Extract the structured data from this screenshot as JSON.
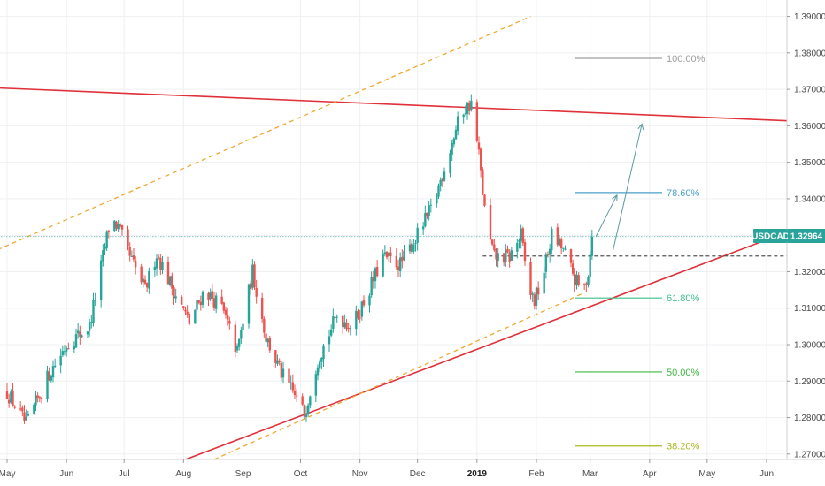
{
  "chart_data": {
    "type": "candlestick",
    "symbol": "USDCAD",
    "last_price": "1.32964",
    "y_ticks": [
      "1.27000",
      "1.28000",
      "1.29000",
      "1.30000",
      "1.31000",
      "1.32000",
      "1.33000",
      "1.34000",
      "1.35000",
      "1.36000",
      "1.37000",
      "1.38000",
      "1.39000"
    ],
    "y_tick_values": [
      1.27,
      1.28,
      1.29,
      1.3,
      1.31,
      1.32,
      1.33,
      1.34,
      1.35,
      1.36,
      1.37,
      1.38,
      1.39
    ],
    "ylim": [
      1.2685,
      1.3945
    ],
    "x_ticks": [
      {
        "label": "May",
        "day": 0
      },
      {
        "label": "Jun",
        "day": 31
      },
      {
        "label": "Jul",
        "day": 61
      },
      {
        "label": "Aug",
        "day": 92
      },
      {
        "label": "Sep",
        "day": 123
      },
      {
        "label": "Oct",
        "day": 153
      },
      {
        "label": "Nov",
        "day": 184
      },
      {
        "label": "Dec",
        "day": 214
      },
      {
        "label": "2019",
        "day": 245,
        "bold": true
      },
      {
        "label": "Feb",
        "day": 276
      },
      {
        "label": "Mar",
        "day": 304
      },
      {
        "label": "Apr",
        "day": 335
      },
      {
        "label": "May",
        "day": 365
      },
      {
        "label": "Jun",
        "day": 396
      }
    ],
    "price_path": [
      [
        0,
        1.287
      ],
      [
        10,
        1.278
      ],
      [
        22,
        1.292
      ],
      [
        31,
        1.3
      ],
      [
        43,
        1.305
      ],
      [
        54,
        1.335
      ],
      [
        58,
        1.332
      ],
      [
        64,
        1.324
      ],
      [
        72,
        1.315
      ],
      [
        78,
        1.325
      ],
      [
        85,
        1.317
      ],
      [
        95,
        1.306
      ],
      [
        103,
        1.315
      ],
      [
        112,
        1.31
      ],
      [
        120,
        1.298
      ],
      [
        128,
        1.32
      ],
      [
        135,
        1.302
      ],
      [
        143,
        1.292
      ],
      [
        150,
        1.286
      ],
      [
        155,
        1.281
      ],
      [
        162,
        1.296
      ],
      [
        172,
        1.308
      ],
      [
        180,
        1.305
      ],
      [
        188,
        1.314
      ],
      [
        196,
        1.324
      ],
      [
        205,
        1.322
      ],
      [
        214,
        1.33
      ],
      [
        222,
        1.338
      ],
      [
        230,
        1.352
      ],
      [
        237,
        1.364
      ],
      [
        242,
        1.366
      ],
      [
        246,
        1.352
      ],
      [
        250,
        1.332
      ],
      [
        254,
        1.324
      ],
      [
        262,
        1.324
      ],
      [
        268,
        1.33
      ],
      [
        272,
        1.315
      ],
      [
        275,
        1.312
      ],
      [
        279,
        1.318
      ],
      [
        284,
        1.33
      ],
      [
        290,
        1.326
      ],
      [
        296,
        1.318
      ],
      [
        300,
        1.314
      ],
      [
        303,
        1.32
      ],
      [
        305,
        1.3296
      ]
    ],
    "fib_levels": [
      {
        "label": "100.00%",
        "value": 1.3785,
        "color": "#9e9e9e"
      },
      {
        "label": "78.60%",
        "value": 1.3417,
        "color": "#4a9fc9"
      },
      {
        "label": "61.80%",
        "value": 1.3128,
        "color": "#3dbf8c"
      },
      {
        "label": "50.00%",
        "value": 1.2925,
        "color": "#3fb83f"
      },
      {
        "label": "38.20%",
        "value": 1.2722,
        "color": "#a8b820"
      }
    ],
    "lines": [
      {
        "kind": "resistance",
        "color": "#e0303a",
        "from": [
          -10,
          1.3705
        ],
        "to": [
          425,
          1.361
        ]
      },
      {
        "kind": "support",
        "color": "#e0303a",
        "from": [
          93,
          1.2685
        ],
        "to": [
          425,
          1.3345
        ]
      },
      {
        "kind": "channel",
        "color": "#f0a830",
        "dashed": true,
        "from": [
          -5,
          1.326
        ],
        "to": [
          273,
          1.39
        ]
      },
      {
        "kind": "channel",
        "color": "#f0a830",
        "dashed": true,
        "from": [
          108,
          1.2685
        ],
        "to": [
          300,
          1.314
        ]
      },
      {
        "kind": "current",
        "color": "#4aa8a8",
        "dotted": true,
        "from": [
          -10,
          1.32964
        ],
        "to": [
          425,
          1.32964
        ]
      },
      {
        "kind": "level",
        "color": "#555555",
        "dashed": true,
        "from": [
          248,
          1.3243
        ],
        "to": [
          423,
          1.3243
        ]
      }
    ],
    "arrows": [
      {
        "color": "#5a9a9a",
        "from": [
          307,
          1.3296
        ],
        "to": [
          318,
          1.341
        ]
      },
      {
        "color": "#5a9a9a",
        "from": [
          316,
          1.326
        ],
        "to": [
          331,
          1.3605
        ]
      }
    ]
  }
}
